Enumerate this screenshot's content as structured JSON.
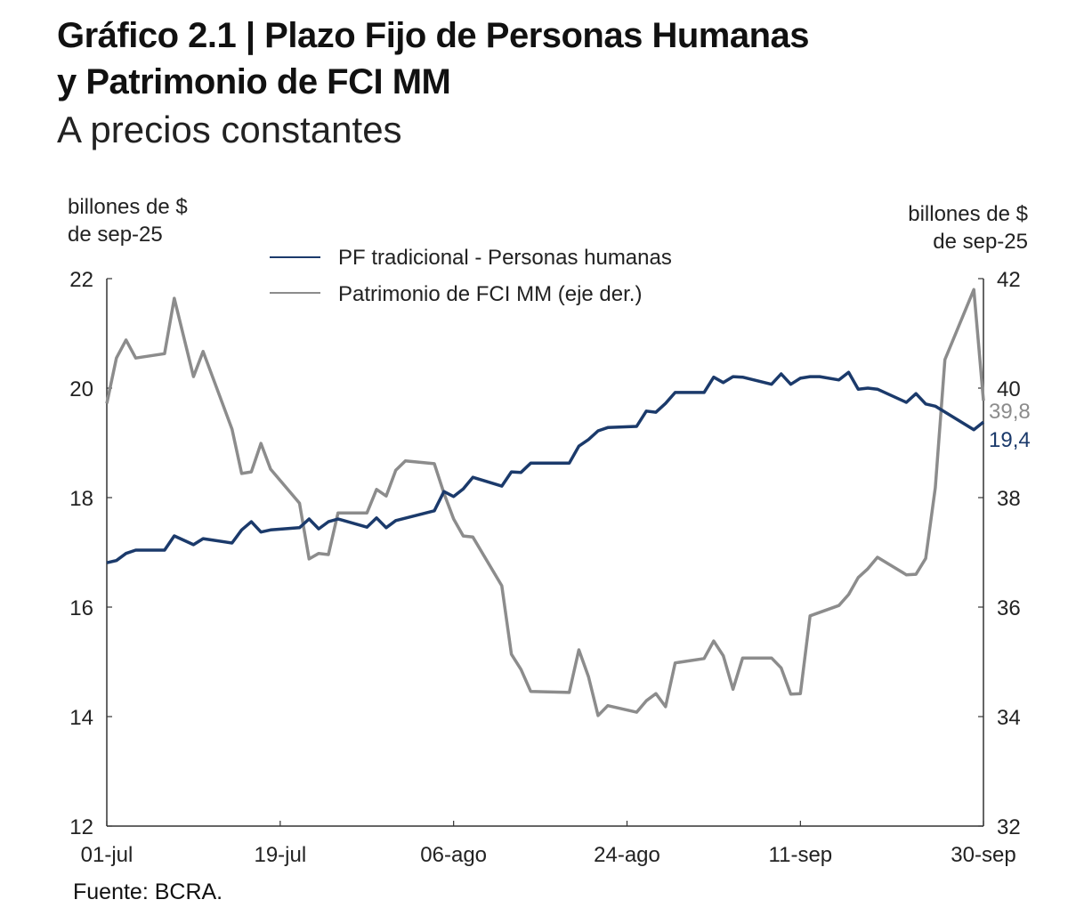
{
  "title_line1": "Gráfico 2.1 | Plazo Fijo de Personas Humanas",
  "title_line2": "y Patrimonio de FCI MM",
  "subtitle": "A precios constantes",
  "source": "Fuente: BCRA.",
  "colors": {
    "pf": "#1b3a6b",
    "fci": "#8c8c8c",
    "axis": "#333333"
  },
  "chart_data": {
    "type": "line",
    "title": "Plazo Fijo de Personas Humanas y Patrimonio de FCI MM",
    "ylabel_left": [
      "billones de $",
      "de sep-25"
    ],
    "ylabel_right": [
      "billones de $",
      "de sep-25"
    ],
    "ylim_left": [
      12,
      22
    ],
    "ylim_right": [
      32,
      42
    ],
    "yticks_left": [
      "12",
      "14",
      "16",
      "18",
      "20",
      "22"
    ],
    "yticks_right": [
      "32",
      "34",
      "36",
      "38",
      "40",
      "42"
    ],
    "xlim_days": [
      0,
      91
    ],
    "xticks": [
      {
        "day": 0,
        "label": "01-jul"
      },
      {
        "day": 18,
        "label": "19-jul"
      },
      {
        "day": 36,
        "label": "06-ago"
      },
      {
        "day": 54,
        "label": "24-ago"
      },
      {
        "day": 72,
        "label": "11-sep"
      },
      {
        "day": 91,
        "label": "30-sep"
      }
    ],
    "legend": [
      "PF tradicional - Personas humanas",
      "Patrimonio de FCI MM (eje der.)"
    ],
    "legend_position": "top-center",
    "end_labels": {
      "pf": "19,4",
      "fci": "39,8"
    },
    "series": [
      {
        "name": "PF tradicional - Personas humanas",
        "axis": "left",
        "points": [
          [
            0,
            16.81
          ],
          [
            1,
            16.85
          ],
          [
            2,
            16.98
          ],
          [
            3,
            17.04
          ],
          [
            6,
            17.04
          ],
          [
            7,
            17.3
          ],
          [
            9,
            17.14
          ],
          [
            10,
            17.25
          ],
          [
            13,
            17.17
          ],
          [
            14,
            17.41
          ],
          [
            15,
            17.56
          ],
          [
            16,
            17.37
          ],
          [
            17,
            17.41
          ],
          [
            20,
            17.45
          ],
          [
            21,
            17.61
          ],
          [
            22,
            17.43
          ],
          [
            23,
            17.56
          ],
          [
            24,
            17.61
          ],
          [
            27,
            17.46
          ],
          [
            28,
            17.63
          ],
          [
            29,
            17.45
          ],
          [
            30,
            17.58
          ],
          [
            34,
            17.76
          ],
          [
            35,
            18.11
          ],
          [
            36,
            18.02
          ],
          [
            37,
            18.16
          ],
          [
            38,
            18.37
          ],
          [
            41,
            18.21
          ],
          [
            42,
            18.47
          ],
          [
            43,
            18.46
          ],
          [
            44,
            18.63
          ],
          [
            48,
            18.63
          ],
          [
            49,
            18.94
          ],
          [
            50,
            19.06
          ],
          [
            51,
            19.22
          ],
          [
            52,
            19.28
          ],
          [
            55,
            19.3
          ],
          [
            56,
            19.58
          ],
          [
            57,
            19.56
          ],
          [
            58,
            19.72
          ],
          [
            59,
            19.92
          ],
          [
            62,
            19.92
          ],
          [
            63,
            20.2
          ],
          [
            64,
            20.1
          ],
          [
            65,
            20.21
          ],
          [
            66,
            20.2
          ],
          [
            69,
            20.07
          ],
          [
            70,
            20.26
          ],
          [
            71,
            20.07
          ],
          [
            72,
            20.18
          ],
          [
            73,
            20.21
          ],
          [
            74,
            20.21
          ],
          [
            76,
            20.15
          ],
          [
            77,
            20.29
          ],
          [
            78,
            19.98
          ],
          [
            79,
            20.0
          ],
          [
            80,
            19.98
          ],
          [
            83,
            19.74
          ],
          [
            84,
            19.9
          ],
          [
            85,
            19.71
          ],
          [
            86,
            19.67
          ],
          [
            90,
            19.24
          ],
          [
            91,
            19.38
          ]
        ]
      },
      {
        "name": "Patrimonio de FCI MM (eje der.)",
        "axis": "right",
        "points": [
          [
            0,
            39.72
          ],
          [
            1,
            40.55
          ],
          [
            2,
            40.88
          ],
          [
            3,
            40.55
          ],
          [
            6,
            40.63
          ],
          [
            7,
            41.64
          ],
          [
            9,
            40.21
          ],
          [
            10,
            40.67
          ],
          [
            13,
            39.25
          ],
          [
            14,
            38.44
          ],
          [
            15,
            38.47
          ],
          [
            16,
            38.99
          ],
          [
            17,
            38.52
          ],
          [
            20,
            37.9
          ],
          [
            21,
            36.88
          ],
          [
            22,
            36.98
          ],
          [
            23,
            36.96
          ],
          [
            24,
            37.72
          ],
          [
            27,
            37.72
          ],
          [
            28,
            38.15
          ],
          [
            29,
            38.03
          ],
          [
            30,
            38.5
          ],
          [
            31,
            38.67
          ],
          [
            34,
            38.62
          ],
          [
            35,
            38.08
          ],
          [
            36,
            37.61
          ],
          [
            37,
            37.3
          ],
          [
            38,
            37.28
          ],
          [
            41,
            36.39
          ],
          [
            42,
            35.14
          ],
          [
            43,
            34.86
          ],
          [
            44,
            34.46
          ],
          [
            48,
            34.44
          ],
          [
            49,
            35.22
          ],
          [
            50,
            34.73
          ],
          [
            51,
            34.02
          ],
          [
            52,
            34.2
          ],
          [
            55,
            34.08
          ],
          [
            56,
            34.29
          ],
          [
            57,
            34.42
          ],
          [
            58,
            34.18
          ],
          [
            59,
            34.98
          ],
          [
            62,
            35.06
          ],
          [
            63,
            35.38
          ],
          [
            64,
            35.11
          ],
          [
            65,
            34.5
          ],
          [
            66,
            35.07
          ],
          [
            69,
            35.07
          ],
          [
            70,
            34.89
          ],
          [
            71,
            34.41
          ],
          [
            72,
            34.42
          ],
          [
            73,
            35.84
          ],
          [
            76,
            36.03
          ],
          [
            77,
            36.23
          ],
          [
            78,
            36.54
          ],
          [
            79,
            36.7
          ],
          [
            80,
            36.91
          ],
          [
            83,
            36.59
          ],
          [
            84,
            36.6
          ],
          [
            85,
            36.89
          ],
          [
            86,
            38.18
          ],
          [
            87,
            40.52
          ],
          [
            90,
            41.8
          ],
          [
            91,
            39.77
          ]
        ]
      }
    ]
  }
}
